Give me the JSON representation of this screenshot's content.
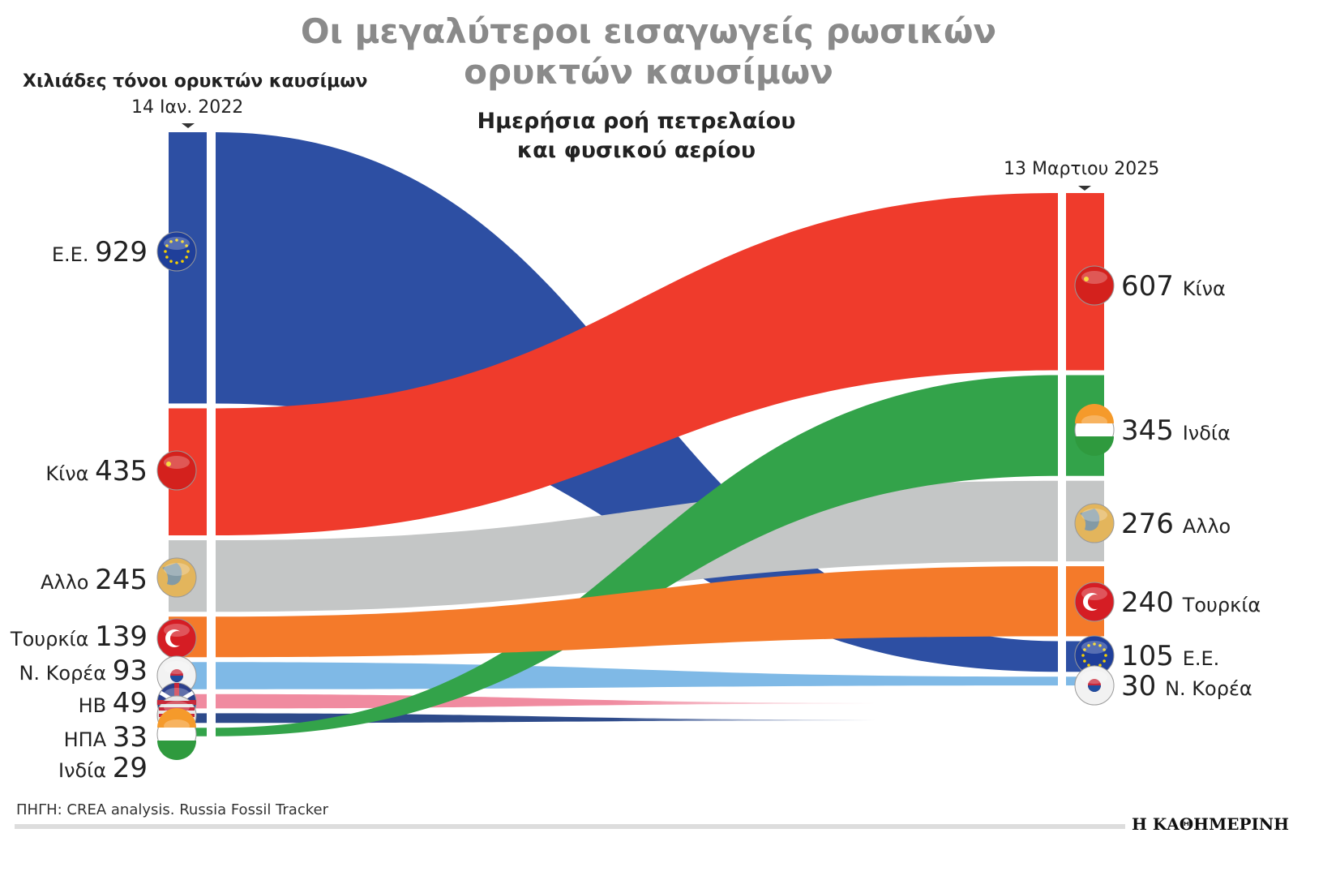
{
  "chart_data": {
    "type": "sankey",
    "title": "Οι μεγαλύτεροι εισαγωγείς ρωσικών ορυκτών καυσίμων",
    "title_lines": [
      "Οι μεγαλύτεροι εισαγωγείς ρωσικών",
      "ορυκτών καυσίμων"
    ],
    "subtitle_lines": [
      "Ημερήσια ροή πετρελαίου",
      "και φυσικού αερίου"
    ],
    "unit_label": "Χιλιάδες τόνοι ορυκτών καυσίμων",
    "left_date": "14 Ιαν. 2022",
    "right_date": "13 Μαρτιου 2025",
    "source": "ΠΗΓΗ: CREA analysis. Russia Fossil Tracker",
    "brand": "Η ΚΑΘΗΜΕΡΙΝΗ",
    "left": [
      {
        "name": "Ε.Ε.",
        "value": 929,
        "color": "#2d4fa3",
        "flag": "eu-flag"
      },
      {
        "name": "Κίνα",
        "value": 435,
        "color": "#ef3b2c",
        "flag": "china-flag"
      },
      {
        "name": "Αλλο",
        "value": 245,
        "color": "#c4c6c6",
        "flag": "globe"
      },
      {
        "name": "Τουρκία",
        "value": 139,
        "color": "#f47a2a",
        "flag": "turkey-flag"
      },
      {
        "name": "Ν. Κορέα",
        "value": 93,
        "color": "#7fb9e6",
        "flag": "korea-flag"
      },
      {
        "name": "ΗΒ",
        "value": 49,
        "color": "#f08ba0",
        "flag": "uk-flag"
      },
      {
        "name": "ΗΠΑ",
        "value": 33,
        "color": "#2d4a8a",
        "flag": "usa-flag"
      },
      {
        "name": "Ινδία",
        "value": 29,
        "color": "#33a34a",
        "flag": "india-flag"
      }
    ],
    "right": [
      {
        "name": "Κίνα",
        "value": 607
      },
      {
        "name": "Ινδία",
        "value": 345
      },
      {
        "name": "Αλλο",
        "value": 276
      },
      {
        "name": "Τουρκία",
        "value": 240
      },
      {
        "name": "Ε.Ε.",
        "value": 105
      },
      {
        "name": "Ν. Κορέα",
        "value": 30
      }
    ]
  }
}
